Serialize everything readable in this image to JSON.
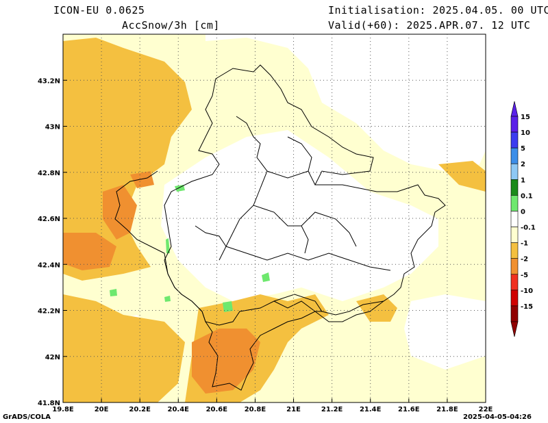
{
  "header": {
    "model": "ICON-EU 0.0625",
    "variable": "AccSnow/3h [cm]",
    "init": "Initialisation: 2025.04.05. 00 UTC",
    "valid": "Valid(+60): 2025.APR.07. 12 UTC"
  },
  "axes": {
    "x_ticks": [
      "19.8E",
      "20E",
      "20.2E",
      "20.4E",
      "20.6E",
      "20.8E",
      "21E",
      "21.2E",
      "21.4E",
      "21.6E",
      "21.8E",
      "22E"
    ],
    "y_ticks": [
      "43.2N",
      "43N",
      "42.8N",
      "42.6N",
      "42.4N",
      "42.2N",
      "42N",
      "41.8N"
    ],
    "lon_range": [
      19.8,
      22.0
    ],
    "lat_range": [
      41.8,
      43.4
    ],
    "grid": true
  },
  "legend": {
    "labels": [
      "15",
      "10",
      "5",
      "2",
      "1",
      "0.1",
      "0",
      "-0.1",
      "-1",
      "-2",
      "-5",
      "-10",
      "-15"
    ],
    "colors": [
      "#5a20e8",
      "#3c3cf0",
      "#3c8ee8",
      "#8ec8f4",
      "#1a8a1a",
      "#6ee86e",
      "#ffffff",
      "#ffffd0",
      "#f4c040",
      "#f09030",
      "#f03020",
      "#d00000",
      "#900000"
    ]
  },
  "footer": {
    "left": "GrADS/COLA",
    "right": "2025-04-05-04:26"
  }
}
